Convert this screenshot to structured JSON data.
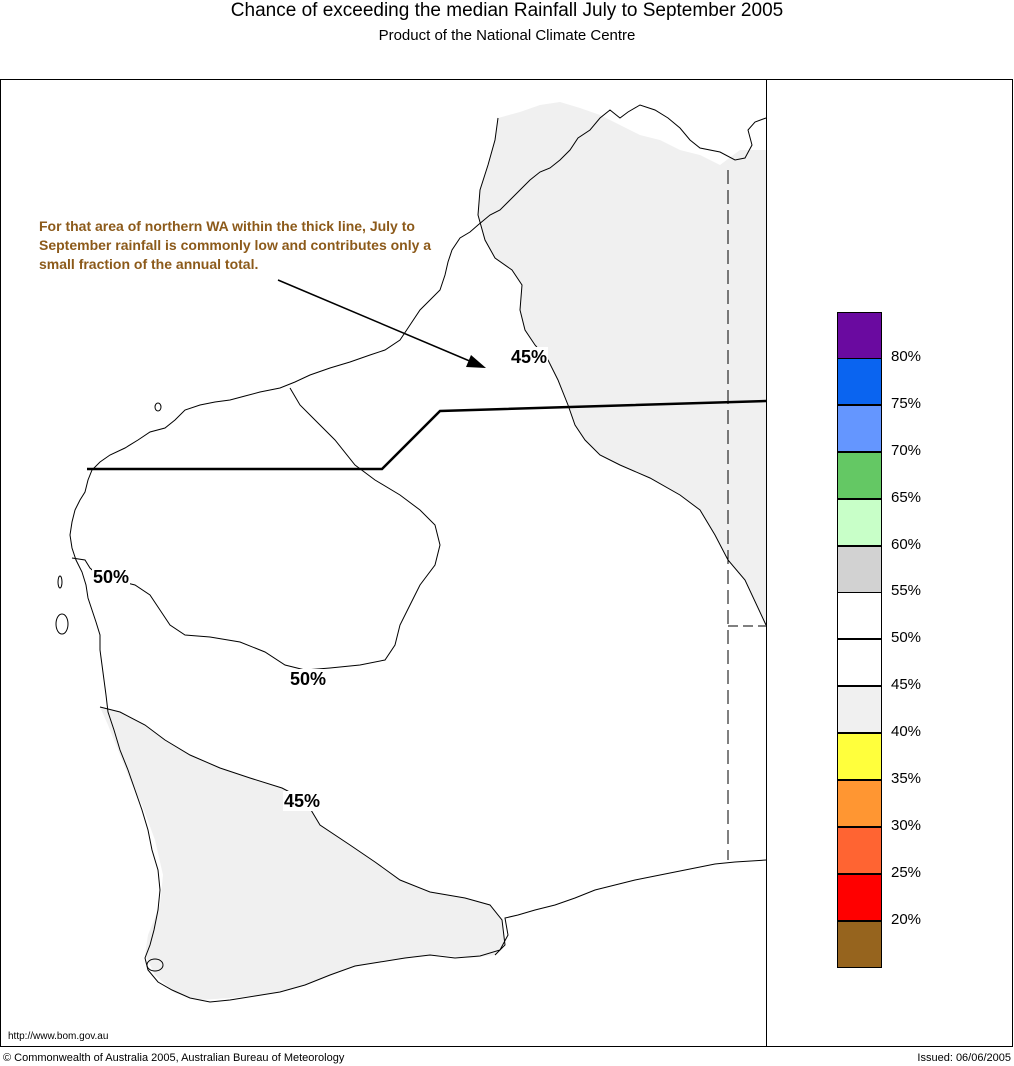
{
  "header": {
    "title": "Chance of exceeding the median Rainfall July to September 2005",
    "subtitle": "Product of the National Climate Centre"
  },
  "annotation": {
    "text": "For that area of northern WA within the thick line, July to September rainfall is commonly low and contributes only a small fraction of the annual total."
  },
  "contour_labels": {
    "north": "45%",
    "west_upper": "50%",
    "west_lower": "50%",
    "south": "45%"
  },
  "legend": {
    "swatches": [
      {
        "color": "#6a0aa0"
      },
      {
        "color": "#0a64f0"
      },
      {
        "color": "#6496ff"
      },
      {
        "color": "#64c864"
      },
      {
        "color": "#c8ffc8"
      },
      {
        "color": "#d2d2d2"
      },
      {
        "color": "#ffffff"
      },
      {
        "color": "#ffffff"
      },
      {
        "color": "#f0f0f0"
      },
      {
        "color": "#ffff3c"
      },
      {
        "color": "#ff9632"
      },
      {
        "color": "#ff6432"
      },
      {
        "color": "#ff0000"
      },
      {
        "color": "#96641e"
      }
    ],
    "labels": [
      "80%",
      "75%",
      "70%",
      "65%",
      "60%",
      "55%",
      "50%",
      "45%",
      "40%",
      "35%",
      "30%",
      "25%",
      "20%"
    ]
  },
  "colors": {
    "shade_40_45": "#f0f0f0",
    "annotation_text": "#8c5a1a"
  },
  "footer": {
    "url": "http://www.bom.gov.au",
    "copyright": "© Commonwealth of Australia 2005, Australian Bureau of Meteorology",
    "issued": "Issued: 06/06/2005"
  }
}
